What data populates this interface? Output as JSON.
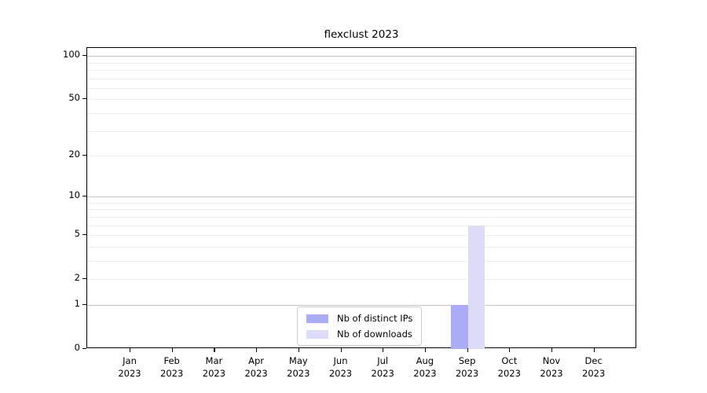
{
  "title": "flexclust 2023",
  "legend": {
    "items": [
      {
        "label": "Nb of distinct IPs",
        "color": "#acacf6"
      },
      {
        "label": "Nb of downloads",
        "color": "#dcdcf9"
      }
    ]
  },
  "chart_data": {
    "type": "bar",
    "title": "flexclust 2023",
    "categories": [
      "Jan 2023",
      "Feb 2023",
      "Mar 2023",
      "Apr 2023",
      "May 2023",
      "Jun 2023",
      "Jul 2023",
      "Aug 2023",
      "Sep 2023",
      "Oct 2023",
      "Nov 2023",
      "Dec 2023"
    ],
    "x_tick_months": [
      "Jan",
      "Feb",
      "Mar",
      "Apr",
      "May",
      "Jun",
      "Jul",
      "Aug",
      "Sep",
      "Oct",
      "Nov",
      "Dec"
    ],
    "x_tick_year": "2023",
    "series": [
      {
        "name": "Nb of distinct IPs",
        "color": "#acacf6",
        "values": [
          0,
          0,
          0,
          0,
          0,
          0,
          0,
          0,
          1,
          0,
          0,
          0
        ]
      },
      {
        "name": "Nb of downloads",
        "color": "#dcdcf9",
        "values": [
          0,
          0,
          0,
          0,
          0,
          0,
          0,
          0,
          6,
          0,
          0,
          0
        ]
      }
    ],
    "xlabel": "",
    "ylabel": "",
    "y_scale": "log1p",
    "y_ticks": [
      0,
      1,
      2,
      5,
      10,
      20,
      50,
      100
    ],
    "y_gridlines_minor": [
      2,
      3,
      4,
      5,
      6,
      7,
      8,
      9,
      20,
      30,
      40,
      50,
      60,
      70,
      80,
      90
    ],
    "y_gridlines_major": [
      1,
      10,
      100
    ],
    "ylim": [
      0,
      101
    ],
    "grid": "horizontal",
    "legend_position": "lower center"
  }
}
